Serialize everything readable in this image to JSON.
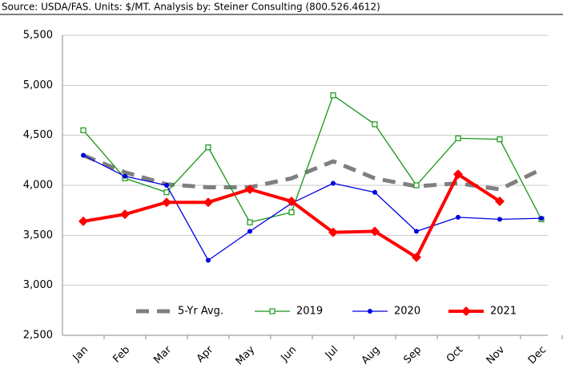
{
  "chart_data": {
    "type": "line",
    "subtitle": "Source: USDA/FAS.  Units: $/MT.  Analysis by: Steiner Consulting (800.526.4612)",
    "categories": [
      "Jan",
      "Feb",
      "Mar",
      "Apr",
      "May",
      "Jun",
      "Jul",
      "Aug",
      "Sep",
      "Oct",
      "Nov",
      "Dec"
    ],
    "series": [
      {
        "name": "5-Yr Avg.",
        "color": "#7f7f7f",
        "values": [
          4300,
          4130,
          4010,
          3980,
          3980,
          4070,
          4240,
          4070,
          3990,
          4020,
          3960,
          4160
        ]
      },
      {
        "name": "2019",
        "color": "#169616",
        "values": [
          4550,
          4070,
          3930,
          4380,
          3630,
          3730,
          4900,
          4610,
          4000,
          4470,
          4460,
          3660
        ]
      },
      {
        "name": "2020",
        "color": "#0000e0",
        "values": [
          4300,
          4090,
          4000,
          3250,
          3540,
          3820,
          4020,
          3930,
          3540,
          3680,
          3660,
          3670
        ]
      },
      {
        "name": "2021",
        "color": "#ff0000",
        "values": [
          3640,
          3710,
          3830,
          3830,
          3960,
          3840,
          3530,
          3540,
          3280,
          4110,
          3840,
          null
        ]
      }
    ],
    "ylim": [
      2500,
      5500
    ],
    "yticks": [
      {
        "value": 2500,
        "label": "2,500"
      },
      {
        "value": 3000,
        "label": "3,000"
      },
      {
        "value": 3500,
        "label": "3,500"
      },
      {
        "value": 4000,
        "label": "4,000"
      },
      {
        "value": 4500,
        "label": "4,500"
      },
      {
        "value": 5000,
        "label": "5,000"
      },
      {
        "value": 5500,
        "label": "5,500"
      }
    ],
    "grid": true,
    "legend": "bottom"
  }
}
